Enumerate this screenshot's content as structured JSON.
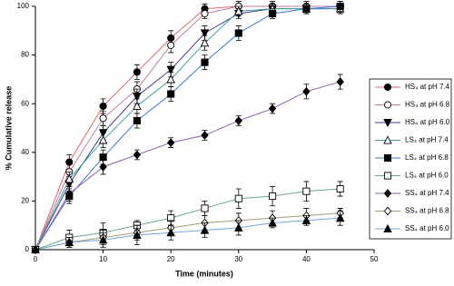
{
  "chart_data": {
    "type": "line",
    "xlabel": "Time (minutes)",
    "ylabel": "% Cumulative release",
    "x": [
      0,
      5,
      10,
      15,
      20,
      25,
      30,
      35,
      40,
      45
    ],
    "xlim": [
      0,
      50
    ],
    "xticks": [
      0,
      10,
      20,
      30,
      40,
      50
    ],
    "ylim": [
      0,
      100
    ],
    "yticks": [
      0,
      20,
      40,
      60,
      80,
      100
    ],
    "legend_position": "right",
    "series": [
      {
        "name": "HS₄ at pH 7.4",
        "color": "#e06666",
        "marker": "circle",
        "filled": true,
        "values": [
          0,
          36,
          59,
          73,
          87,
          99,
          100,
          100,
          100,
          100
        ],
        "errors": [
          0,
          3,
          3,
          3,
          3,
          2,
          2,
          2,
          2,
          2
        ]
      },
      {
        "name": "HS₄ at pH 6.8",
        "color": "#c27ba0",
        "marker": "circle",
        "filled": false,
        "values": [
          0,
          32,
          54,
          66,
          84,
          97,
          100,
          100,
          100,
          100
        ],
        "errors": [
          0,
          3,
          3,
          3,
          3,
          2,
          2,
          2,
          2,
          2
        ]
      },
      {
        "name": "HS₄ at pH 6.0",
        "color": "#3d3d8f",
        "marker": "triangle-down",
        "filled": true,
        "values": [
          0,
          27,
          48,
          63,
          74,
          89,
          97,
          99,
          99,
          99
        ],
        "errors": [
          0,
          3,
          3,
          3,
          3,
          3,
          2,
          2,
          2,
          2
        ]
      },
      {
        "name": "LS₄ at pH 7.4",
        "color": "#45a0a0",
        "marker": "triangle-up",
        "filled": false,
        "values": [
          0,
          29,
          45,
          59,
          70,
          85,
          98,
          99,
          99,
          99
        ],
        "errors": [
          0,
          3,
          3,
          3,
          3,
          3,
          2,
          2,
          2,
          2
        ]
      },
      {
        "name": "LS₄ at pH 6.8",
        "color": "#3c78d8",
        "marker": "square",
        "filled": true,
        "values": [
          0,
          22,
          38,
          53,
          64,
          77,
          89,
          97,
          99,
          100
        ],
        "errors": [
          0,
          3,
          3,
          3,
          3,
          3,
          3,
          2,
          2,
          2
        ]
      },
      {
        "name": "LS₄ at pH 6.0",
        "color": "#6aa88a",
        "marker": "square",
        "filled": false,
        "values": [
          0,
          5,
          7,
          10,
          13,
          17,
          21,
          22,
          24,
          25
        ],
        "errors": [
          0,
          3,
          4,
          2,
          3,
          3,
          4,
          4,
          4,
          3
        ]
      },
      {
        "name": "SS₄ at pH 7.4",
        "color": "#8e5fa8",
        "marker": "diamond",
        "filled": true,
        "values": [
          0,
          23,
          34,
          39,
          44,
          47,
          53,
          58,
          65,
          69
        ],
        "errors": [
          0,
          3,
          3,
          2,
          2,
          2,
          2,
          2,
          3,
          3
        ]
      },
      {
        "name": "SS₄ at pH 6.8",
        "color": "#a0a070",
        "marker": "diamond",
        "filled": false,
        "values": [
          0,
          3,
          5,
          7,
          9,
          11,
          12,
          13,
          14,
          15
        ],
        "errors": [
          0,
          2,
          3,
          3,
          3,
          3,
          3,
          3,
          3,
          2
        ]
      },
      {
        "name": "SS₄ at pH 6.0",
        "color": "#6fa8dc",
        "marker": "triangle-up",
        "filled": true,
        "values": [
          0,
          3,
          4,
          6,
          7,
          8,
          9,
          11,
          12,
          13
        ],
        "errors": [
          0,
          2,
          3,
          4,
          3,
          3,
          3,
          2,
          2,
          3
        ]
      }
    ]
  }
}
